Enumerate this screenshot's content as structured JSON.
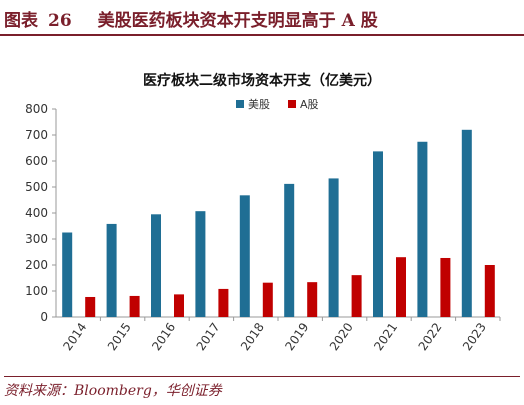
{
  "figure": {
    "label": "图表",
    "number": "26",
    "caption": "美股医药板块资本开支明显高于 A 股"
  },
  "source_note": "资料来源：Bloomberg，华创证券",
  "chart_data": {
    "type": "bar",
    "title": "医疗板块二级市场资本开支（亿美元）",
    "xlabel": "",
    "ylabel": "",
    "categories": [
      "2014",
      "2015",
      "2016",
      "2017",
      "2018",
      "2019",
      "2020",
      "2021",
      "2022",
      "2023"
    ],
    "series": [
      {
        "name": "美股",
        "color": "#1f6e94",
        "values": [
          325,
          358,
          395,
          407,
          468,
          512,
          533,
          637,
          674,
          720
        ]
      },
      {
        "name": "A股",
        "color": "#c00000",
        "values": [
          77,
          81,
          87,
          108,
          132,
          134,
          161,
          230,
          227,
          200
        ]
      }
    ],
    "ylim": [
      0,
      800
    ],
    "yticks": [
      0,
      100,
      200,
      300,
      400,
      500,
      600,
      700,
      800
    ],
    "grid": false,
    "legend_position": "top-center"
  }
}
